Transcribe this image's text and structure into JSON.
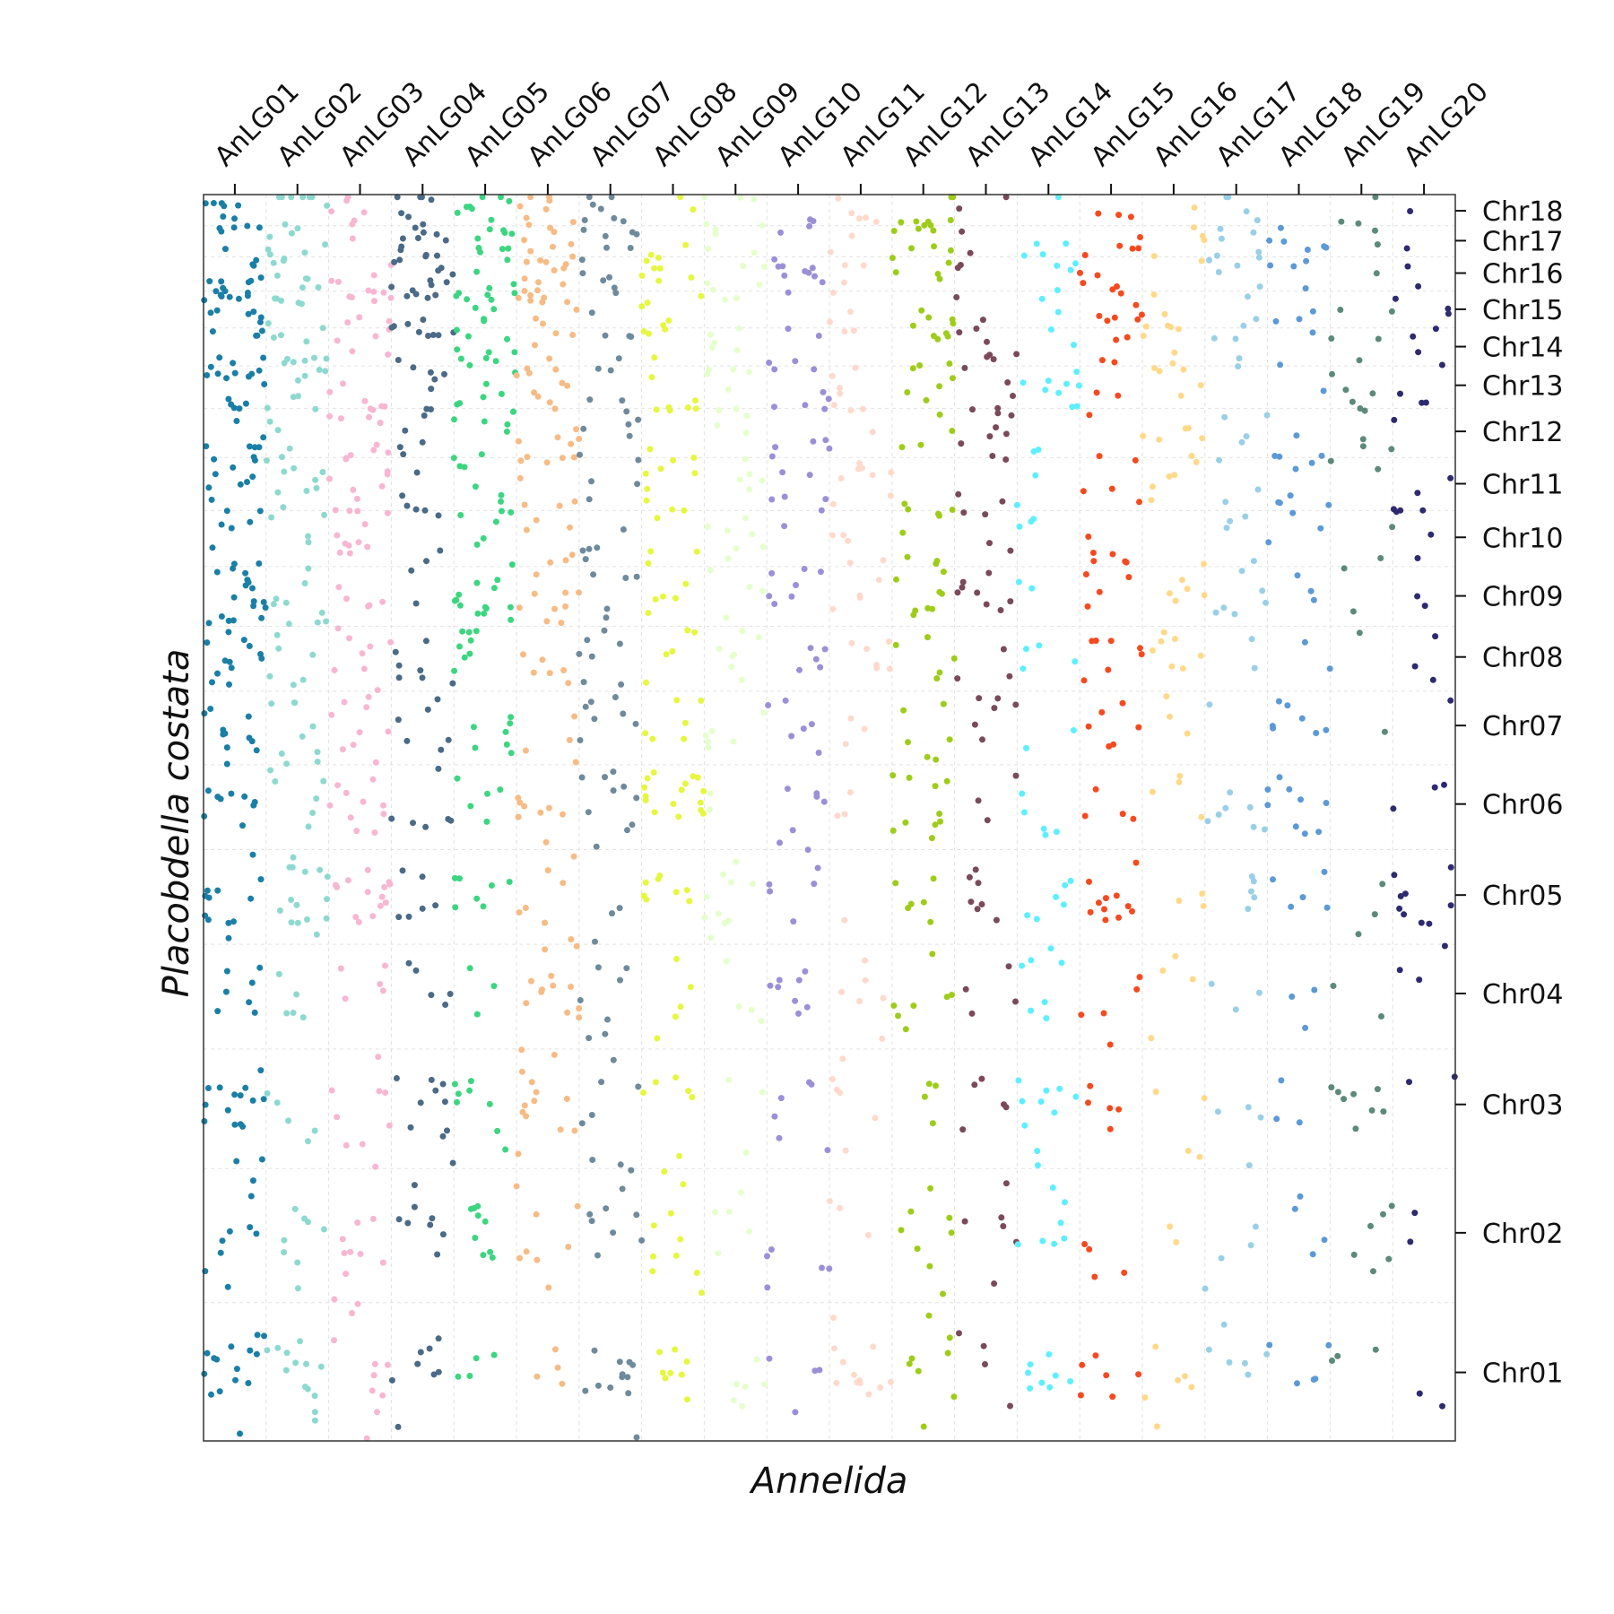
{
  "chart_data": {
    "type": "scatter",
    "xlabel": "Annelida",
    "ylabel": "Placobdella costata",
    "x_tick_labels": [
      "AnLG01",
      "AnLG02",
      "AnLG03",
      "AnLG04",
      "AnLG05",
      "AnLG06",
      "AnLG07",
      "AnLG08",
      "AnLG09",
      "AnLG10",
      "AnLG11",
      "AnLG12",
      "AnLG13",
      "AnLG14",
      "AnLG15",
      "AnLG16",
      "AnLG17",
      "AnLG18",
      "AnLG19",
      "AnLG20"
    ],
    "x_tick_positions": [
      1,
      2,
      3,
      4,
      5,
      6,
      7,
      8,
      9,
      10,
      11,
      12,
      13,
      14,
      15,
      16,
      17,
      18,
      19,
      20
    ],
    "xlim": [
      0.5,
      20.5
    ],
    "y_tick_labels": [
      "Chr01",
      "Chr02",
      "Chr03",
      "Chr04",
      "Chr05",
      "Chr06",
      "Chr07",
      "Chr08",
      "Chr09",
      "Chr10",
      "Chr11",
      "Chr12",
      "Chr13",
      "Chr14",
      "Chr15",
      "Chr16",
      "Chr17",
      "Chr18"
    ],
    "y_tick_positions": [
      0.055,
      0.167,
      0.27,
      0.359,
      0.438,
      0.511,
      0.574,
      0.629,
      0.678,
      0.725,
      0.768,
      0.81,
      0.847,
      0.878,
      0.908,
      0.937,
      0.963,
      0.987
    ],
    "ylim": [
      0,
      1
    ],
    "grid": true,
    "point_density_per_column": [
      95,
      70,
      70,
      60,
      65,
      70,
      55,
      55,
      45,
      45,
      40,
      55,
      40,
      40,
      45,
      35,
      35,
      35,
      25,
      25
    ],
    "series_colors": [
      "#1a7fa6",
      "#8dd9cf",
      "#f7b6d2",
      "#4a6a87",
      "#3cd680",
      "#f7bb85",
      "#6e8a9c",
      "#e5f73f",
      "#e5ffcc",
      "#9b8fd8",
      "#ffd9cc",
      "#9ecc1a",
      "#7a4a5a",
      "#5eefff",
      "#f54a1f",
      "#ffd98a",
      "#9acfe8",
      "#5c99d6",
      "#5c8a7a",
      "#2e2a70"
    ]
  }
}
